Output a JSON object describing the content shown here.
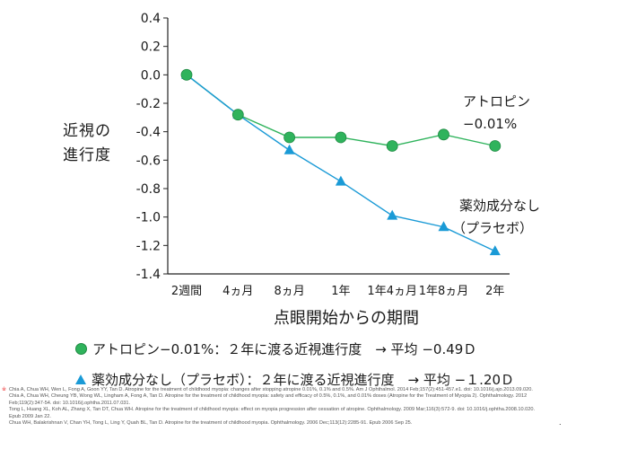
{
  "chart_data": {
    "type": "line",
    "categories": [
      "2週間",
      "4ヵ月",
      "8ヵ月",
      "1年",
      "1年4ヵ月",
      "1年8ヵ月",
      "2年"
    ],
    "ylim": [
      -1.4,
      0.4
    ],
    "yticks": [
      "0.4",
      "0.2",
      "0.0",
      "-0.2",
      "-0.4",
      "-0.6",
      "-0.8",
      "-1.0",
      "-1.2",
      "-1.4"
    ],
    "xlabel": "点眼開始からの期間",
    "ylabel_lines": [
      "近視の",
      "進行度"
    ],
    "grid": false,
    "series": [
      {
        "name": "アトロピン−0.01%",
        "label_lines": [
          "アトロピン",
          "−0.01%"
        ],
        "marker": "circle",
        "color": "#2fb35c",
        "values": [
          0.0,
          -0.28,
          -0.44,
          -0.44,
          -0.5,
          -0.42,
          -0.5
        ]
      },
      {
        "name": "薬効成分なし（プラセボ）",
        "label_lines": [
          "薬効成分なし",
          "（プラセボ）"
        ],
        "marker": "triangle",
        "color": "#1a9ad6",
        "values": [
          0.0,
          -0.28,
          -0.53,
          -0.75,
          -0.99,
          -1.07,
          -1.24
        ]
      }
    ]
  },
  "legend": [
    {
      "marker": "circle",
      "text": "アトロピン−0.01%：２年に渡る近視進行度　→ 平均 −0.49Ｄ"
    },
    {
      "marker": "triangle",
      "text": "薬効成分なし（プラセボ）：２年に渡る近視進行度　→ 平均 −１.20Ｄ"
    }
  ],
  "references": [
    "Chia A, Chua WH, Wen L, Fong A, Goon YY, Tan D. Atropine for the treatment of childhood myopia: changes after stopping atropine 0.01%, 0.1% and 0.5%. Am J Ophthalmol. 2014 Feb;157(2):451-457.e1. doi: 10.1016/j.ajo.2013.09.020.",
    "Chia A, Chua WH, Cheung YB, Wong WL, Lingham A, Fong A, Tan D. Atropine for the treatment of childhood myopia: safety and efficacy of 0.5%, 0.1%, and 0.01% doses (Atropine for the Treatment of Myopia 2). Ophthalmology. 2012",
    "Feb;119(2):347-54. doi: 10.1016/j.ophtha.2011.07.031.",
    "Tong L, Huang XL, Koh AL, Zhang X, Tan DT, Chua WH. Atropine for the treatment of childhood myopia: effect on myopia progression after cessation of atropine. Ophthalmology. 2009 Mar;116(3):572-9. doi: 10.1016/j.ophtha.2008.10.020.",
    "Epub 2009 Jan 22.",
    "Chua WH, Balakrishnan V, Chan YH, Tong L, Ling Y, Quah BL, Tan D. Atropine for the treatment of childhood myopia. Ophthalmology. 2006 Dec;113(12):2285-91. Epub 2006 Sep 25."
  ],
  "reference_bullet": "※",
  "trailing_mark": "."
}
